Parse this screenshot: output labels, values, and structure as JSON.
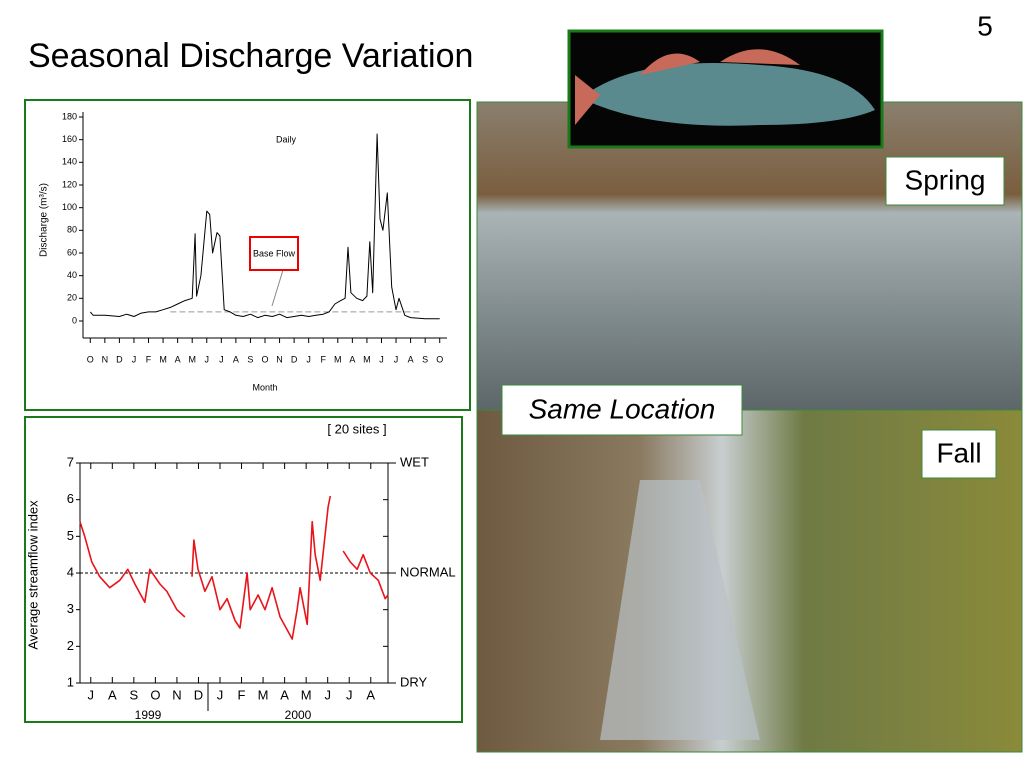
{
  "slide": {
    "title": "Seasonal Discharge Variation",
    "page_number": "5",
    "photo_labels": {
      "spring": "Spring",
      "same_location": "Same Location",
      "fall": "Fall"
    }
  },
  "chart_data": [
    {
      "type": "line",
      "annotation": "Daily",
      "callout": "Base Flow",
      "x_label": "Month",
      "y_label": "Discharge (m³/s)",
      "color": "#000000",
      "reference_line": 8,
      "x": [
        0,
        0.2,
        1,
        2,
        2.5,
        3,
        3.5,
        4,
        4.5,
        5,
        5.5,
        6,
        6.5,
        7,
        7.2,
        7.3,
        7.6,
        8.0,
        8.2,
        8.4,
        8.7,
        8.9,
        9.2,
        9.6,
        10,
        10.5,
        11,
        11.5,
        12,
        12.5,
        13,
        13.5,
        14,
        14.5,
        15,
        15.5,
        16,
        16.4,
        16.8,
        17.2,
        17.5,
        17.7,
        17.9,
        18.3,
        18.7,
        19.0,
        19.2,
        19.4,
        19.7,
        19.9,
        20.1,
        20.4,
        20.7,
        21.0,
        21.2,
        21.6,
        22,
        23,
        24
      ],
      "values": [
        8,
        5,
        5,
        4,
        6,
        4,
        7,
        8,
        8,
        10,
        12,
        15,
        18,
        20,
        77,
        22,
        40,
        97,
        94,
        60,
        78,
        75,
        10,
        8,
        5,
        4,
        6,
        3,
        5,
        4,
        6,
        3,
        4,
        5,
        4,
        5,
        6,
        8,
        15,
        18,
        20,
        65,
        25,
        20,
        18,
        22,
        70,
        25,
        165,
        90,
        80,
        113,
        30,
        10,
        20,
        5,
        3,
        2,
        2
      ],
      "xlim": [
        -0.5,
        24.5
      ],
      "ylim": [
        -15,
        180
      ],
      "yticks": [
        0,
        20,
        40,
        60,
        80,
        100,
        120,
        140,
        160,
        180
      ],
      "xticks": [
        {
          "value": 0,
          "label": "O"
        },
        {
          "value": 1,
          "label": "N"
        },
        {
          "value": 2,
          "label": "D"
        },
        {
          "value": 3,
          "label": "J"
        },
        {
          "value": 4,
          "label": "F"
        },
        {
          "value": 5,
          "label": "M"
        },
        {
          "value": 6,
          "label": "A"
        },
        {
          "value": 7,
          "label": "M"
        },
        {
          "value": 8,
          "label": "J"
        },
        {
          "value": 9,
          "label": "J"
        },
        {
          "value": 10,
          "label": "A"
        },
        {
          "value": 11,
          "label": "S"
        },
        {
          "value": 12,
          "label": "O"
        },
        {
          "value": 13,
          "label": "N"
        },
        {
          "value": 14,
          "label": "D"
        },
        {
          "value": 15,
          "label": "J"
        },
        {
          "value": 16,
          "label": "F"
        },
        {
          "value": 17,
          "label": "M"
        },
        {
          "value": 18,
          "label": "A"
        },
        {
          "value": 19,
          "label": "M"
        },
        {
          "value": 20,
          "label": "J"
        },
        {
          "value": 21,
          "label": "J"
        },
        {
          "value": 22,
          "label": "A"
        },
        {
          "value": 23,
          "label": "S"
        },
        {
          "value": 24,
          "label": "O"
        }
      ]
    },
    {
      "type": "line",
      "annotation": "[ 20 sites ]",
      "y_label": "Average streamflow index",
      "year_labels": [
        "1999",
        "2000"
      ],
      "color": "#e8141a",
      "reference_line": 4,
      "x": [
        -0.5,
        -0.28,
        0.05,
        0.42,
        0.88,
        1.35,
        1.72,
        2.05,
        2.51,
        2.74,
        3.21,
        3.53,
        4.0,
        4.37,
        4.6,
        4.7,
        4.79,
        4.98,
        5.3,
        5.63,
        6.0,
        6.33,
        6.7,
        6.93,
        7.26,
        7.4,
        7.77,
        8.09,
        8.42,
        8.79,
        9.35,
        9.58,
        9.72,
        10.05,
        10.28,
        10.42,
        10.65,
        11.02,
        11.12,
        11.4,
        11.72,
        12.05,
        12.37,
        12.65,
        12.98,
        13.35,
        13.67,
        13.8
      ],
      "values": [
        5.4,
        5.0,
        4.3,
        3.9,
        3.6,
        3.8,
        4.1,
        3.7,
        3.2,
        4.1,
        3.7,
        3.5,
        3.0,
        2.8,
        null,
        3.9,
        4.9,
        4.1,
        3.5,
        3.9,
        3.0,
        3.3,
        2.7,
        2.5,
        4.0,
        3.0,
        3.4,
        3.0,
        3.6,
        2.8,
        2.2,
        3.0,
        3.6,
        2.6,
        5.4,
        4.5,
        3.8,
        5.8,
        6.1,
        null,
        4.6,
        4.3,
        4.1,
        4.5,
        4.0,
        3.8,
        3.3,
        3.4
      ],
      "xlim": [
        -0.5,
        13.8
      ],
      "ylim": [
        1,
        7
      ],
      "yticks": [
        1,
        2,
        3,
        4,
        5,
        6,
        7
      ],
      "y2lim": [
        1,
        7
      ],
      "y2ticks": [
        {
          "value": 7,
          "label": "WET"
        },
        {
          "value": 4,
          "label": "NORMAL"
        },
        {
          "value": 1,
          "label": "DRY"
        }
      ],
      "xticks": [
        {
          "value": 0,
          "label": "J"
        },
        {
          "value": 1,
          "label": "A"
        },
        {
          "value": 2,
          "label": "S"
        },
        {
          "value": 3,
          "label": "O"
        },
        {
          "value": 4,
          "label": "N"
        },
        {
          "value": 5,
          "label": "D"
        },
        {
          "value": 6,
          "label": "J"
        },
        {
          "value": 7,
          "label": "F"
        },
        {
          "value": 8,
          "label": "M"
        },
        {
          "value": 9,
          "label": "A"
        },
        {
          "value": 10,
          "label": "M"
        },
        {
          "value": 11,
          "label": "J"
        },
        {
          "value": 12,
          "label": "J"
        },
        {
          "value": 13,
          "label": "A"
        }
      ]
    }
  ]
}
